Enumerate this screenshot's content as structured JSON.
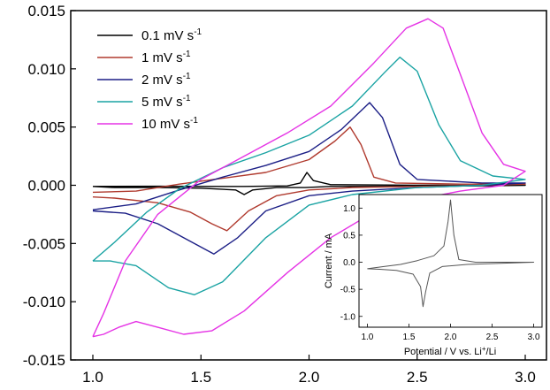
{
  "chart_data": [
    {
      "type": "line",
      "title": "",
      "xlabel": "",
      "ylabel": "",
      "xlim": [
        1.0,
        3.0
      ],
      "ylim": [
        -0.015,
        0.015
      ],
      "x_ticks": [
        "1.0",
        "1.5",
        "2.0",
        "2.5",
        "3.0"
      ],
      "y_ticks": [
        "0.015",
        "0.010",
        "0.005",
        "0.000",
        "-0.005",
        "-0.010",
        "-0.015"
      ],
      "grid": false,
      "legend_position": "top-left",
      "series": [
        {
          "name": "0.1 mV s-1",
          "name_main": "0.1 mV s",
          "name_sup": "-1",
          "color": "#000000",
          "points": [
            [
              1.0,
              -0.0001
            ],
            [
              1.3,
              -8e-05
            ],
            [
              1.6,
              -0.0001
            ],
            [
              1.7,
              -0.0001
            ],
            [
              1.9,
              -5e-05
            ],
            [
              1.96,
              0.0002
            ],
            [
              1.99,
              0.0011
            ],
            [
              2.02,
              0.0004
            ],
            [
              2.1,
              5e-05
            ],
            [
              2.5,
              0.0
            ],
            [
              3.0,
              0.0
            ],
            [
              2.8,
              -5e-05
            ],
            [
              2.4,
              -0.0001
            ],
            [
              2.1,
              -0.0001
            ],
            [
              1.98,
              -0.0002
            ],
            [
              1.85,
              -0.0002
            ],
            [
              1.74,
              -0.0004
            ],
            [
              1.7,
              -0.0008
            ],
            [
              1.66,
              -0.0004
            ],
            [
              1.5,
              -0.00025
            ],
            [
              1.3,
              -0.0002
            ],
            [
              1.1,
              -0.0002
            ],
            [
              1.0,
              -0.0001
            ]
          ]
        },
        {
          "name": "1 mV s-1",
          "name_main": "1 mV s",
          "name_sup": "-1",
          "color": "#b03a2e",
          "points": [
            [
              1.0,
              -0.0006
            ],
            [
              1.2,
              -0.0005
            ],
            [
              1.4,
              0.0001
            ],
            [
              1.6,
              0.0006
            ],
            [
              1.8,
              0.0011
            ],
            [
              2.0,
              0.0022
            ],
            [
              2.12,
              0.0038
            ],
            [
              2.19,
              0.005
            ],
            [
              2.24,
              0.0035
            ],
            [
              2.3,
              0.0007
            ],
            [
              2.4,
              0.0002
            ],
            [
              2.7,
              0.0001
            ],
            [
              3.0,
              0.0001
            ],
            [
              2.8,
              0.0
            ],
            [
              2.5,
              -0.0001
            ],
            [
              2.2,
              -0.0002
            ],
            [
              2.0,
              -0.0004
            ],
            [
              1.85,
              -0.0009
            ],
            [
              1.72,
              -0.0022
            ],
            [
              1.62,
              -0.0039
            ],
            [
              1.55,
              -0.0033
            ],
            [
              1.45,
              -0.0023
            ],
            [
              1.3,
              -0.0015
            ],
            [
              1.1,
              -0.0011
            ],
            [
              1.0,
              -0.001
            ]
          ]
        },
        {
          "name": "2 mV s-1",
          "name_main": "2 mV s",
          "name_sup": "-1",
          "color": "#1c1f86",
          "points": [
            [
              1.0,
              -0.0021
            ],
            [
              1.2,
              -0.0016
            ],
            [
              1.4,
              -0.0004
            ],
            [
              1.6,
              0.0007
            ],
            [
              1.8,
              0.0017
            ],
            [
              2.0,
              0.0029
            ],
            [
              2.15,
              0.0048
            ],
            [
              2.28,
              0.0071
            ],
            [
              2.34,
              0.0058
            ],
            [
              2.42,
              0.0018
            ],
            [
              2.5,
              0.0005
            ],
            [
              2.8,
              0.0002
            ],
            [
              3.0,
              0.0002
            ],
            [
              2.8,
              0.0
            ],
            [
              2.5,
              -0.0002
            ],
            [
              2.2,
              -0.0005
            ],
            [
              2.0,
              -0.0009
            ],
            [
              1.8,
              -0.0022
            ],
            [
              1.67,
              -0.0045
            ],
            [
              1.56,
              -0.0059
            ],
            [
              1.45,
              -0.0048
            ],
            [
              1.3,
              -0.0033
            ],
            [
              1.15,
              -0.0024
            ],
            [
              1.0,
              -0.0022
            ]
          ]
        },
        {
          "name": "5 mV s-1",
          "name_main": "5 mV s",
          "name_sup": "-1",
          "color": "#1aa3a3",
          "points": [
            [
              1.0,
              -0.0065
            ],
            [
              1.1,
              -0.0049
            ],
            [
              1.25,
              -0.0023
            ],
            [
              1.4,
              -0.0003
            ],
            [
              1.6,
              0.0015
            ],
            [
              1.8,
              0.0028
            ],
            [
              2.0,
              0.0043
            ],
            [
              2.2,
              0.0068
            ],
            [
              2.35,
              0.0097
            ],
            [
              2.42,
              0.011
            ],
            [
              2.5,
              0.0098
            ],
            [
              2.6,
              0.0052
            ],
            [
              2.7,
              0.0021
            ],
            [
              2.85,
              0.0008
            ],
            [
              3.0,
              0.0005
            ],
            [
              2.8,
              0.0
            ],
            [
              2.5,
              -0.0002
            ],
            [
              2.2,
              -0.0008
            ],
            [
              2.0,
              -0.0017
            ],
            [
              1.8,
              -0.0045
            ],
            [
              1.6,
              -0.0083
            ],
            [
              1.47,
              -0.0094
            ],
            [
              1.35,
              -0.0088
            ],
            [
              1.2,
              -0.0069
            ],
            [
              1.08,
              -0.0065
            ],
            [
              1.0,
              -0.0065
            ]
          ]
        },
        {
          "name": "10 mV s-1",
          "name_main": "10 mV s",
          "name_sup": "-1",
          "color": "#e533e5",
          "points": [
            [
              1.0,
              -0.013
            ],
            [
              1.05,
              -0.011
            ],
            [
              1.15,
              -0.0065
            ],
            [
              1.3,
              -0.0025
            ],
            [
              1.5,
              0.0005
            ],
            [
              1.7,
              0.0025
            ],
            [
              1.9,
              0.0045
            ],
            [
              2.1,
              0.0068
            ],
            [
              2.3,
              0.0105
            ],
            [
              2.45,
              0.0135
            ],
            [
              2.55,
              0.0143
            ],
            [
              2.62,
              0.0135
            ],
            [
              2.7,
              0.0095
            ],
            [
              2.8,
              0.0045
            ],
            [
              2.9,
              0.0018
            ],
            [
              3.0,
              0.0012
            ],
            [
              2.9,
              0.0
            ],
            [
              2.7,
              -0.0005
            ],
            [
              2.5,
              -0.0012
            ],
            [
              2.3,
              -0.0023
            ],
            [
              2.1,
              -0.0045
            ],
            [
              1.9,
              -0.0075
            ],
            [
              1.7,
              -0.0108
            ],
            [
              1.55,
              -0.0125
            ],
            [
              1.42,
              -0.0128
            ],
            [
              1.3,
              -0.0122
            ],
            [
              1.2,
              -0.0117
            ],
            [
              1.12,
              -0.0122
            ],
            [
              1.05,
              -0.0128
            ],
            [
              1.0,
              -0.013
            ]
          ]
        }
      ]
    },
    {
      "type": "line",
      "title": "",
      "xlabel": "Potential / V vs. Li",
      "xlabel_sup": "+",
      "xlabel_end": "/Li",
      "ylabel": "Current / mA",
      "xlim": [
        0.9,
        3.1
      ],
      "ylim": [
        -1.2,
        1.25
      ],
      "x_ticks": [
        "1.0",
        "1.5",
        "2.0",
        "2.5",
        "3.0"
      ],
      "y_ticks": [
        "1.0",
        "0.5",
        "0.0",
        "-0.5",
        "-1.0"
      ],
      "grid": false,
      "series": [
        {
          "color": "#555555",
          "points": [
            [
              1.0,
              -0.12
            ],
            [
              1.2,
              -0.08
            ],
            [
              1.4,
              -0.04
            ],
            [
              1.6,
              0.03
            ],
            [
              1.8,
              0.12
            ],
            [
              1.92,
              0.3
            ],
            [
              1.97,
              0.75
            ],
            [
              2.0,
              1.15
            ],
            [
              2.04,
              0.5
            ],
            [
              2.1,
              0.05
            ],
            [
              2.3,
              0.0
            ],
            [
              2.7,
              0.0
            ],
            [
              3.0,
              0.0
            ],
            [
              2.6,
              -0.02
            ],
            [
              2.2,
              -0.04
            ],
            [
              1.9,
              -0.08
            ],
            [
              1.75,
              -0.2
            ],
            [
              1.7,
              -0.55
            ],
            [
              1.67,
              -0.82
            ],
            [
              1.64,
              -0.45
            ],
            [
              1.55,
              -0.22
            ],
            [
              1.35,
              -0.15
            ],
            [
              1.15,
              -0.13
            ],
            [
              1.0,
              -0.12
            ]
          ]
        }
      ]
    }
  ]
}
